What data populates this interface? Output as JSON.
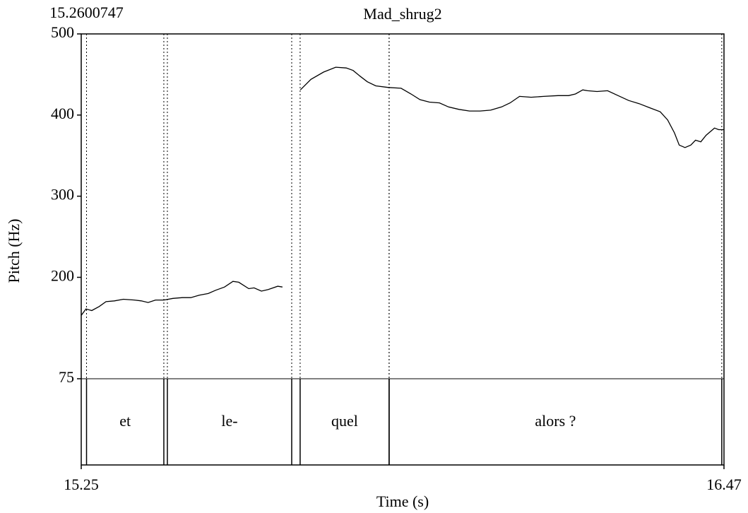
{
  "chart_data": {
    "type": "line",
    "title": "Mad_shrug2",
    "cursor_time": 15.2600747,
    "xlabel": "Time (s)",
    "ylabel": "Pitch (Hz)",
    "xlim": [
      15.25,
      16.47
    ],
    "xticks": [
      15.25,
      16.47
    ],
    "ylim": [
      75,
      500
    ],
    "yticks": [
      75,
      200,
      300,
      400,
      500
    ],
    "series": [
      {
        "name": "Pitch",
        "color": "#000000",
        "x": [
          15.25,
          15.259,
          15.27,
          15.284,
          15.297,
          15.313,
          15.33,
          15.351,
          15.364,
          15.377,
          15.391,
          15.407,
          15.424,
          15.442,
          15.458,
          15.474,
          15.491,
          15.505,
          15.522,
          15.538,
          15.549,
          15.568,
          15.578,
          15.592,
          15.605,
          15.623,
          15.632,
          15.65,
          15.666,
          15.686,
          15.71,
          15.733,
          15.753,
          15.766,
          15.779,
          15.793,
          15.809,
          15.833,
          15.857,
          15.876,
          15.893,
          15.911,
          15.93,
          15.947,
          15.967,
          15.987,
          16.007,
          16.027,
          16.048,
          16.064,
          16.082,
          16.104,
          16.128,
          16.155,
          16.175,
          16.188,
          16.202,
          16.211,
          16.229,
          16.249,
          16.269,
          16.289,
          16.309,
          16.329,
          16.349,
          16.363,
          16.376,
          16.385,
          16.396,
          16.407,
          16.416,
          16.426,
          16.436,
          16.452,
          16.46,
          16.47
        ],
        "values": [
          153,
          161,
          159,
          164,
          170,
          171,
          173,
          172,
          171,
          169,
          172,
          172,
          174,
          175,
          175,
          178,
          180,
          184,
          188,
          195,
          194,
          186,
          187,
          183,
          185,
          189,
          188,
          null,
          431,
          444,
          453,
          459,
          458,
          455,
          448,
          441,
          436,
          434,
          433,
          426,
          419,
          416,
          415,
          410,
          407,
          405,
          405,
          406,
          410,
          415,
          423,
          422,
          423,
          424,
          424,
          426,
          431,
          430,
          429,
          430,
          424,
          418,
          414,
          409,
          404,
          394,
          378,
          363,
          360,
          363,
          369,
          367,
          375,
          384,
          382,
          382
        ]
      }
    ],
    "intervals": [
      {
        "start": 15.2600747,
        "end": 15.4068,
        "label": "et"
      },
      {
        "start": 15.4135,
        "end": 15.6495,
        "label": "le-"
      },
      {
        "start": 15.6655,
        "end": 15.8344,
        "label": "quel"
      },
      {
        "start": 15.8344,
        "end": 16.4658,
        "label": "alors ?"
      }
    ]
  }
}
